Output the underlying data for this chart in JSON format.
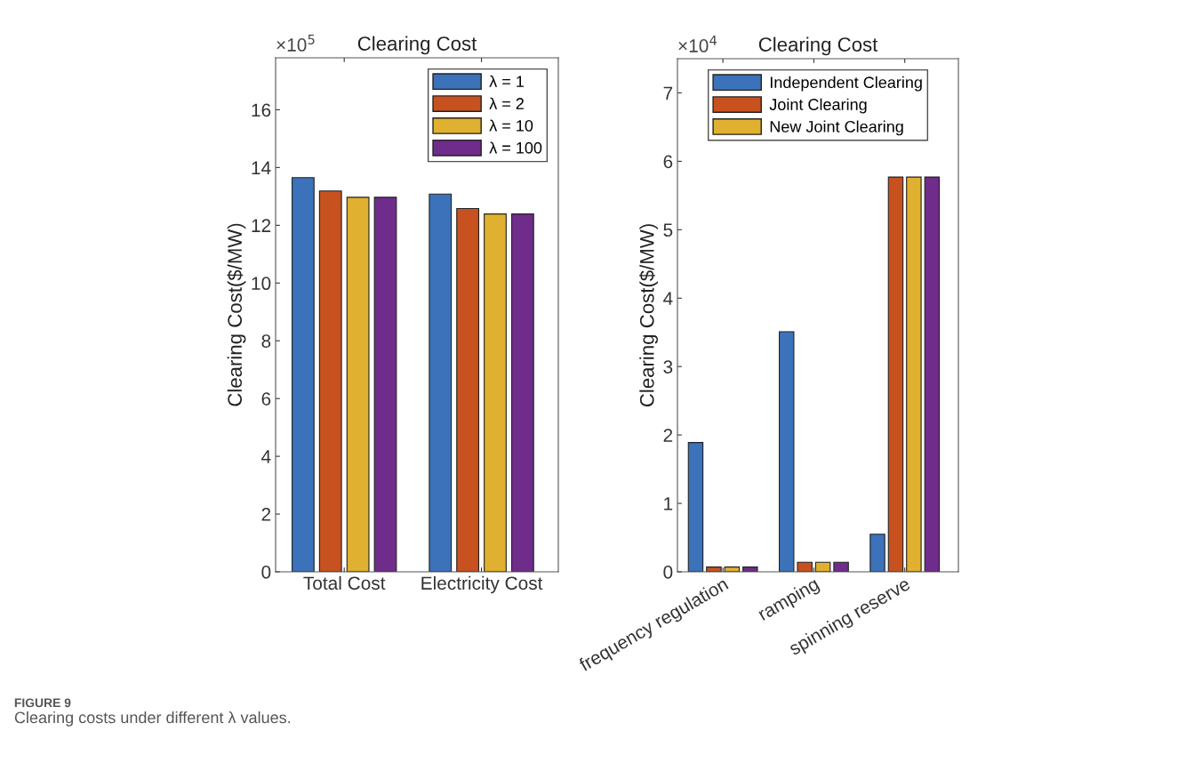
{
  "chart_data": [
    {
      "type": "bar",
      "title": "Clearing Cost",
      "ylabel": "Clearing Cost($/MW)",
      "categories": [
        "Total Cost",
        "Electricity Cost"
      ],
      "series": [
        {
          "name": "λ = 1",
          "color": "#3c72b9",
          "values": [
            13.65,
            13.08
          ]
        },
        {
          "name": "λ = 2",
          "color": "#c7521f",
          "values": [
            13.19,
            12.58
          ]
        },
        {
          "name": "λ = 10",
          "color": "#e0b030",
          "values": [
            12.97,
            12.39
          ]
        },
        {
          "name": "λ = 100",
          "color": "#6f2c8a",
          "values": [
            12.97,
            12.39
          ]
        }
      ],
      "ylim": [
        0,
        17.8
      ],
      "yticks": [
        0,
        2,
        4,
        6,
        8,
        10,
        12,
        14,
        16
      ],
      "legend": "top right",
      "grid": false,
      "annotations": [
        "×10$^{5}$",
        "FIGURE 9",
        "Clearing costs under different λ values."
      ]
    },
    {
      "type": "bar",
      "title": "Clearing Cost",
      "ylabel": "Clearing Cost($/MW)",
      "categories": [
        "frequency regulation",
        "ramping",
        "spinning reserve"
      ],
      "series": [
        {
          "name": "Independent Clearing",
          "color": "#3c72b9",
          "values": [
            1.89,
            3.51,
            0.55
          ]
        },
        {
          "name": "Joint Clearing",
          "color": "#c7521f",
          "values": [
            0.07,
            0.14,
            5.77
          ]
        },
        {
          "name": "New Joint Clearing",
          "color": "#e0b030",
          "values": [
            0.07,
            0.14,
            5.77
          ]
        },
        {
          "color": "#6f2c8a",
          "values": [
            0.07,
            0.14,
            5.77
          ]
        }
      ],
      "ylim": [
        0,
        7.5
      ],
      "yticks": [
        0,
        1,
        2,
        3,
        4,
        5,
        6,
        7
      ],
      "legend": "top",
      "grid": false,
      "annotations": [
        "×10$^{4}$"
      ]
    }
  ]
}
